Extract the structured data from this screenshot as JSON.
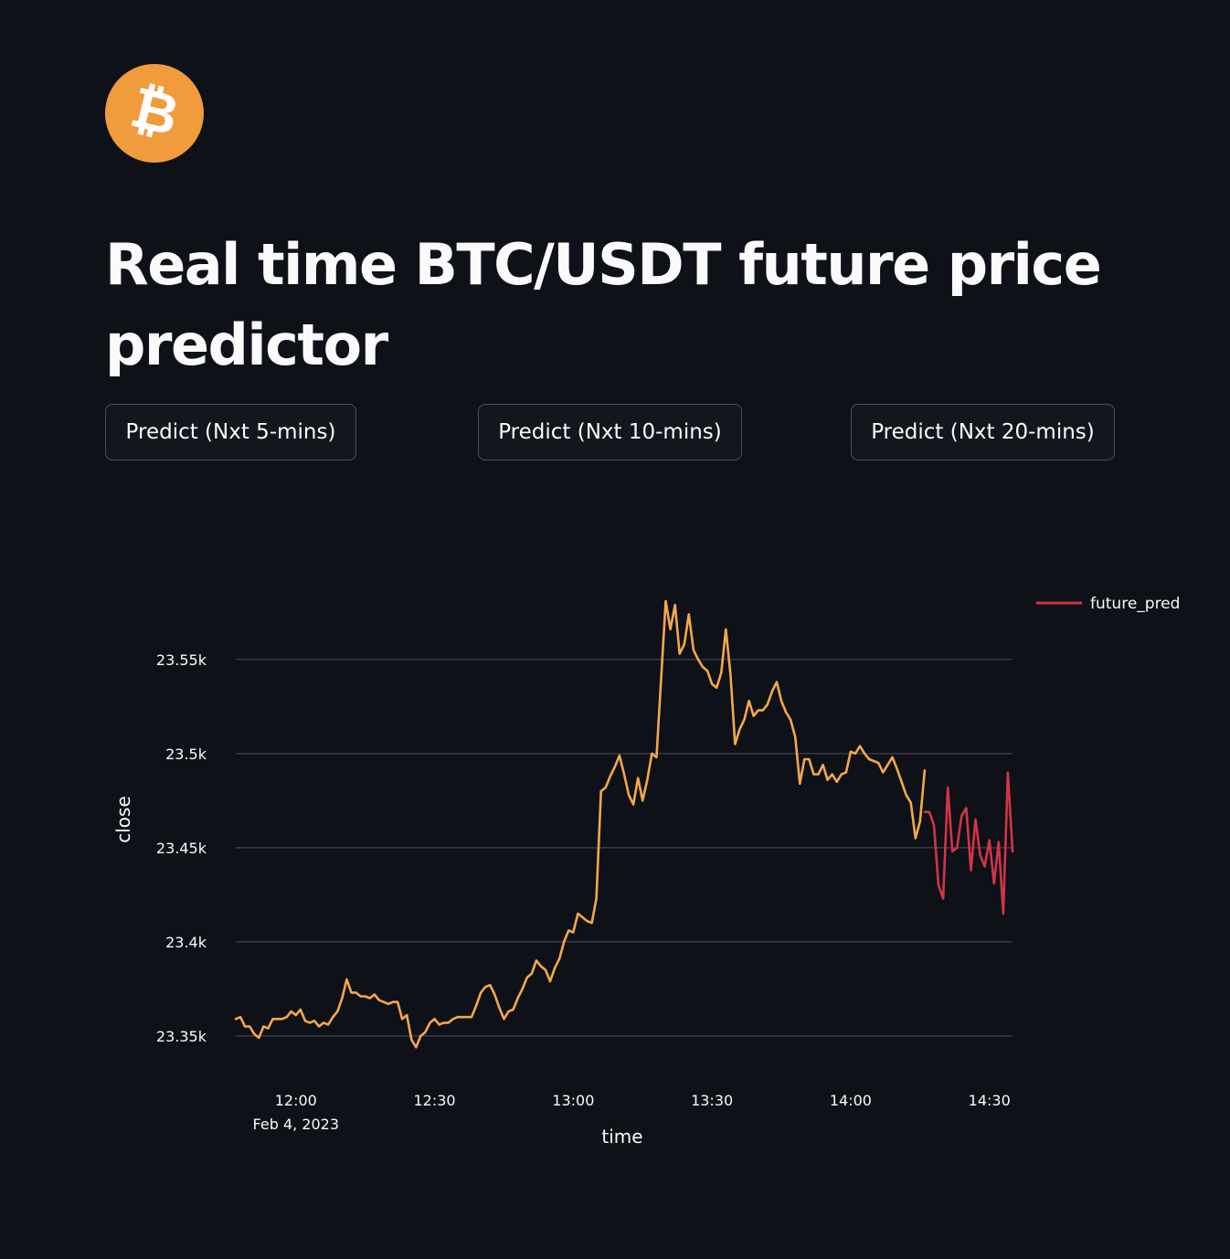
{
  "logo": {
    "icon": "bitcoin-icon",
    "glyph": "₿",
    "color": "#f09b3c"
  },
  "title": "Real time BTC/USDT future price predictor",
  "buttons": {
    "predict_5": "Predict (Nxt 5-mins)",
    "predict_10": "Predict (Nxt 10-mins)",
    "predict_20": "Predict (Nxt 20-mins)"
  },
  "chart_data": {
    "type": "line",
    "xlabel": "time",
    "ylabel": "close",
    "x_unit": "minutes after 11:49, Feb 4, 2023",
    "x_range": [
      0,
      168
    ],
    "ylim": [
      23330,
      23580
    ],
    "grid": true,
    "legend_position": "top-right",
    "x_ticks": [
      {
        "label": "12:00",
        "sublabel": "Feb 4, 2023",
        "value": 13
      },
      {
        "label": "12:30",
        "sublabel": "",
        "value": 43
      },
      {
        "label": "13:00",
        "sublabel": "",
        "value": 73
      },
      {
        "label": "13:30",
        "sublabel": "",
        "value": 103
      },
      {
        "label": "14:00",
        "sublabel": "",
        "value": 133
      },
      {
        "label": "14:30",
        "sublabel": "",
        "value": 163
      }
    ],
    "y_ticks": [
      {
        "label": "23.35k",
        "value": 23350
      },
      {
        "label": "23.4k",
        "value": 23400
      },
      {
        "label": "23.45k",
        "value": 23450
      },
      {
        "label": "23.5k",
        "value": 23500
      },
      {
        "label": "23.55k",
        "value": 23550
      }
    ],
    "series": [
      {
        "name": "",
        "color": "#f5a84a",
        "show_in_legend": false,
        "x": [
          0,
          1,
          2,
          3,
          4,
          5,
          6,
          7,
          8,
          9,
          10,
          11,
          12,
          13,
          14,
          15,
          16,
          17,
          18,
          19,
          20,
          21,
          22,
          23,
          24,
          25,
          26,
          27,
          28,
          29,
          30,
          31,
          32,
          33,
          34,
          35,
          36,
          37,
          38,
          39,
          40,
          41,
          42,
          43,
          44,
          45,
          46,
          47,
          48,
          49,
          50,
          51,
          52,
          53,
          54,
          55,
          56,
          57,
          58,
          59,
          60,
          61,
          62,
          63,
          64,
          65,
          66,
          67,
          68,
          69,
          70,
          71,
          72,
          73,
          74,
          75,
          76,
          77,
          78,
          79,
          80,
          81,
          82,
          83,
          84,
          85,
          86,
          87,
          88,
          89,
          90,
          91,
          92,
          93,
          94,
          95,
          96,
          97,
          98,
          99,
          100,
          101,
          102,
          103,
          104,
          105,
          106,
          107,
          108,
          109,
          110,
          111,
          112,
          113,
          114,
          115,
          116,
          117,
          118,
          119,
          120,
          121,
          122,
          123,
          124,
          125,
          126,
          127,
          128,
          129,
          130,
          131,
          132,
          133,
          134,
          135,
          136,
          137,
          138,
          139,
          140,
          141,
          142,
          143,
          144,
          145,
          146,
          147,
          148,
          149
        ],
        "values": [
          23359,
          23360,
          23355,
          23355,
          23351,
          23349,
          23355,
          23354,
          23359,
          23359,
          23359,
          23360,
          23363,
          23361,
          23364,
          23358,
          23357,
          23358,
          23355,
          23357,
          23356,
          23360,
          23363,
          23370,
          23380,
          23373,
          23373,
          23371,
          23371,
          23370,
          23372,
          23369,
          23368,
          23367,
          23368,
          23368,
          23359,
          23361,
          23348,
          23344,
          23350,
          23352,
          23357,
          23359,
          23356,
          23357,
          23357,
          23359,
          23360,
          23360,
          23360,
          23360,
          23366,
          23373,
          23376,
          23377,
          23372,
          23365,
          23359,
          23363,
          23364,
          23370,
          23375,
          23381,
          23383,
          23390,
          23387,
          23385,
          23379,
          23386,
          23391,
          23400,
          23406,
          23405,
          23415,
          23413,
          23411,
          23410,
          23423,
          23480,
          23482,
          23488,
          23493,
          23499,
          23489,
          23478,
          23473,
          23487,
          23475,
          23486,
          23500,
          23498,
          23540,
          23581,
          23566,
          23579,
          23553,
          23558,
          23574,
          23555,
          23550,
          23546,
          23544,
          23537,
          23535,
          23543,
          23566,
          23542,
          23505,
          23513,
          23518,
          23528,
          23520,
          23523,
          23523,
          23526,
          23533,
          23538,
          23528,
          23522,
          23518,
          23509,
          23484,
          23497,
          23497,
          23489,
          23489,
          23494,
          23486,
          23489,
          23485,
          23489,
          23490,
          23501,
          23500,
          23504,
          23500,
          23497,
          23496,
          23495,
          23490,
          23494,
          23498,
          23492,
          23485,
          23478,
          23474,
          23455,
          23464,
          23491
        ]
      },
      {
        "name": "future_pred",
        "color": "#d23447",
        "show_in_legend": true,
        "x": [
          149,
          150,
          151,
          152,
          153,
          154,
          155,
          156,
          157,
          158,
          159,
          160,
          161,
          162,
          163,
          164,
          165,
          166,
          167,
          168
        ],
        "values": [
          23469,
          23469,
          23462,
          23430,
          23423,
          23482,
          23448,
          23450,
          23467,
          23471,
          23438,
          23465,
          23446,
          23440,
          23454,
          23431,
          23453,
          23415,
          23490,
          23448
        ]
      }
    ]
  }
}
